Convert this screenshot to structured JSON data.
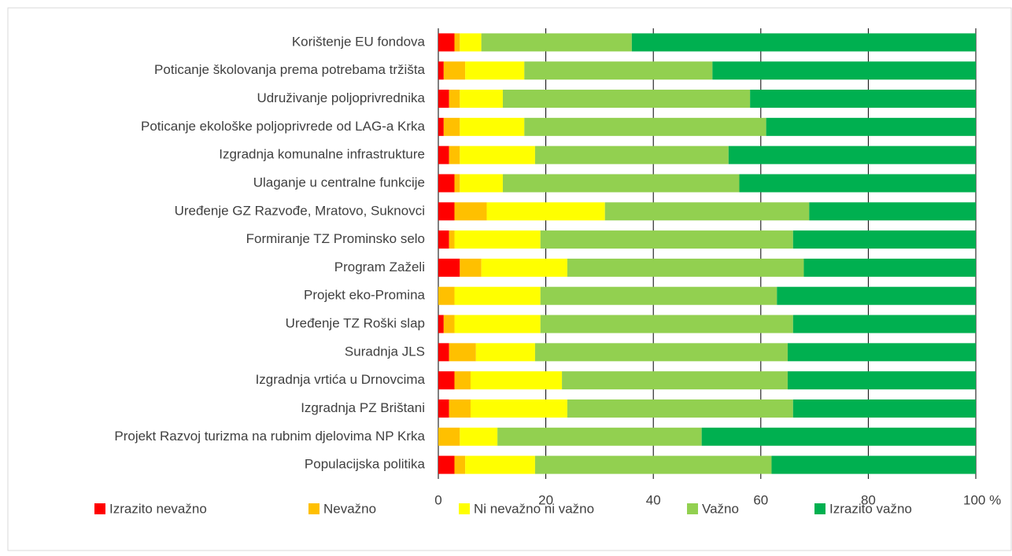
{
  "chart_data": {
    "type": "stacked_bar_horizontal",
    "categories": [
      "Korištenje EU fondova",
      "Poticanje školovanja prema potrebama tržišta",
      "Udruživanje poljoprivrednika",
      "Poticanje ekološke poljoprivrede od LAG-a Krka",
      "Izgradnja komunalne infrastrukture",
      "Ulaganje u centralne funkcije",
      "Uređenje GZ Razvođe, Mratovo, Suknovci",
      "Formiranje TZ Prominsko selo",
      "Program Zaželi",
      "Projekt eko-Promina",
      "Uređenje TZ Roški slap",
      "Suradnja JLS",
      "Izgradnja vrtića u Drnovcima",
      "Izgradnja PZ Brištani",
      "Projekt Razvoj turizma na rubnim djelovima NP Krka",
      "Populacijska politika"
    ],
    "series": [
      {
        "name": "Izrazito nevažno",
        "color": "#ff0000",
        "values": [
          3,
          1,
          2,
          1,
          2,
          3,
          3,
          2,
          4,
          0,
          1,
          2,
          3,
          2,
          0,
          3
        ]
      },
      {
        "name": "Nevažno",
        "color": "#ffc000",
        "values": [
          1,
          4,
          2,
          3,
          2,
          1,
          6,
          1,
          4,
          3,
          2,
          5,
          3,
          4,
          4,
          2
        ]
      },
      {
        "name": "Ni nevažno ni važno",
        "color": "#ffff00",
        "values": [
          4,
          11,
          8,
          12,
          14,
          8,
          22,
          16,
          16,
          16,
          16,
          11,
          17,
          18,
          7,
          13
        ]
      },
      {
        "name": "Važno",
        "color": "#92d050",
        "values": [
          28,
          35,
          46,
          45,
          36,
          44,
          38,
          47,
          44,
          44,
          47,
          47,
          42,
          42,
          38,
          44
        ]
      },
      {
        "name": "Izrazito važno",
        "color": "#00b050",
        "values": [
          64,
          49,
          42,
          39,
          46,
          44,
          31,
          34,
          32,
          37,
          34,
          35,
          35,
          34,
          51,
          38
        ]
      }
    ],
    "xlim": [
      0,
      100
    ],
    "xticks": [
      0,
      20,
      40,
      60,
      80,
      {
        "value": 100,
        "label": "100 %"
      }
    ],
    "grid": true,
    "legend": "bottom"
  }
}
